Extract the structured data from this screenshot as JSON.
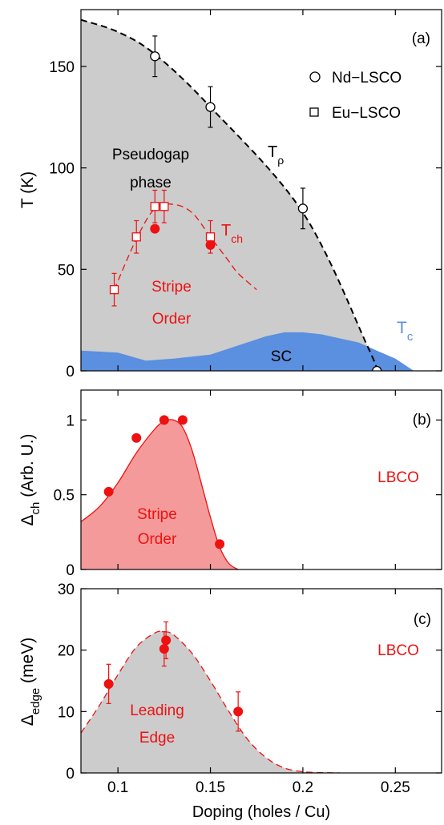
{
  "x_axis": {
    "label": "Doping (holes / Cu)",
    "xlim": [
      0.08,
      0.275
    ],
    "ticks": [
      0.1,
      0.15,
      0.2,
      0.25
    ],
    "tick_labels": [
      "0.1",
      "0.15",
      "0.2",
      "0.25"
    ]
  },
  "colors": {
    "pseudogap_fill": "#cccccc",
    "sc_fill": "#5b8fdf",
    "red": "#ee1111",
    "stripe_fill_b": "#f59a9a",
    "tc_label": "#5b8fdf",
    "black": "#000000"
  },
  "chart_data": [
    {
      "type": "scatter",
      "panel_label": "(a)",
      "ylabel": "T (K)",
      "ylim": [
        0,
        178
      ],
      "yticks": [
        0,
        50,
        100,
        150
      ],
      "ytick_labels": [
        "0",
        "50",
        "100",
        "150"
      ],
      "legend_placement": "top-right",
      "legend": [
        {
          "name": "Nd−LSCO",
          "marker": "circle"
        },
        {
          "name": "Eu−LSCO",
          "marker": "square"
        }
      ],
      "annotations": {
        "pseudogap_line1": "Pseudogap",
        "pseudogap_line2": "phase",
        "t_rho": "T",
        "t_rho_sub": "ρ",
        "t_ch": "T",
        "t_ch_sub": "ch",
        "stripe_line1": "Stripe",
        "stripe_line2": "Order",
        "sc": "SC",
        "tc": "T",
        "tc_sub": "c"
      },
      "series": [
        {
          "name": "Nd−LSCO",
          "marker": "open-circle",
          "x": [
            0.12,
            0.15,
            0.2,
            0.24
          ],
          "y": [
            155,
            130,
            80,
            0
          ],
          "err": [
            10,
            10,
            10,
            0
          ]
        },
        {
          "name": "Eu−LSCO",
          "marker": "open-square",
          "x": [
            0.098,
            0.11,
            0.12,
            0.125,
            0.15
          ],
          "y": [
            40,
            66,
            81,
            81,
            66
          ],
          "err": [
            8,
            8,
            8,
            8,
            8
          ]
        },
        {
          "marker": "filled-circle",
          "x": [
            0.12,
            0.15
          ],
          "y": [
            70,
            62
          ],
          "err": [
            0,
            0
          ]
        }
      ],
      "t_rho_curve": {
        "x": [
          0.08,
          0.1,
          0.12,
          0.15,
          0.2,
          0.235,
          0.24
        ],
        "y": [
          173,
          167,
          156,
          130,
          78,
          12,
          0
        ]
      },
      "t_ch_curve": {
        "x": [
          0.098,
          0.11,
          0.12,
          0.13,
          0.14,
          0.15,
          0.16,
          0.165,
          0.175
        ],
        "y": [
          40,
          65,
          80,
          82,
          78,
          66,
          54,
          48,
          40
        ]
      },
      "sc_dome": {
        "x": [
          0.08,
          0.1,
          0.115,
          0.13,
          0.14,
          0.15,
          0.16,
          0.17,
          0.18,
          0.19,
          0.2,
          0.21,
          0.22,
          0.23,
          0.24,
          0.25,
          0.26,
          0.27
        ],
        "y": [
          10,
          9,
          5,
          6,
          7,
          8,
          11,
          14,
          17,
          19,
          19,
          18,
          16,
          14,
          10,
          6,
          0,
          0
        ]
      }
    },
    {
      "type": "area",
      "panel_label": "(b)",
      "ylabel": "Δ",
      "ylabel_sub": "ch",
      "ylabel_rest": " (Arb. U.)",
      "ylim": [
        0,
        1.2
      ],
      "yticks": [
        0,
        0.5,
        1
      ],
      "ytick_labels": [
        "0",
        "0.5",
        "1"
      ],
      "annotations": {
        "compound": "LBCO",
        "stripe_line1": "Stripe",
        "stripe_line2": "Order"
      },
      "series": [
        {
          "marker": "filled-circle",
          "x": [
            0.095,
            0.11,
            0.125,
            0.135,
            0.155
          ],
          "y": [
            0.52,
            0.88,
            1.0,
            1.0,
            0.17
          ]
        }
      ],
      "curve": {
        "x": [
          0.08,
          0.09,
          0.1,
          0.11,
          0.12,
          0.125,
          0.13,
          0.135,
          0.14,
          0.145,
          0.15,
          0.155,
          0.16,
          0.165
        ],
        "y": [
          0.32,
          0.42,
          0.58,
          0.78,
          0.94,
          0.99,
          1.0,
          0.95,
          0.8,
          0.58,
          0.35,
          0.15,
          0.04,
          0.0
        ]
      }
    },
    {
      "type": "area",
      "panel_label": "(c)",
      "ylabel": "Δ",
      "ylabel_sub": "edge",
      "ylabel_rest": " (meV)",
      "ylim": [
        0,
        30
      ],
      "yticks": [
        0,
        10,
        20,
        30
      ],
      "ytick_labels": [
        "0",
        "10",
        "20",
        "30"
      ],
      "annotations": {
        "compound": "LBCO",
        "leading_line1": "Leading",
        "leading_line2": "Edge"
      },
      "series": [
        {
          "marker": "filled-circle",
          "x": [
            0.095,
            0.125,
            0.126,
            0.165
          ],
          "y": [
            14.5,
            20.2,
            21.6,
            10.0
          ],
          "err": [
            3.2,
            2.8,
            3.0,
            3.2
          ]
        }
      ],
      "curve": {
        "x": [
          0.08,
          0.09,
          0.1,
          0.11,
          0.12,
          0.125,
          0.13,
          0.14,
          0.15,
          0.16,
          0.17,
          0.18,
          0.19,
          0.2,
          0.21,
          0.22
        ],
        "y": [
          6.5,
          11,
          16,
          20.5,
          22.8,
          23,
          22.5,
          19.5,
          15,
          10,
          5.5,
          2.5,
          0.8,
          0.2,
          0.05,
          0
        ]
      }
    }
  ]
}
